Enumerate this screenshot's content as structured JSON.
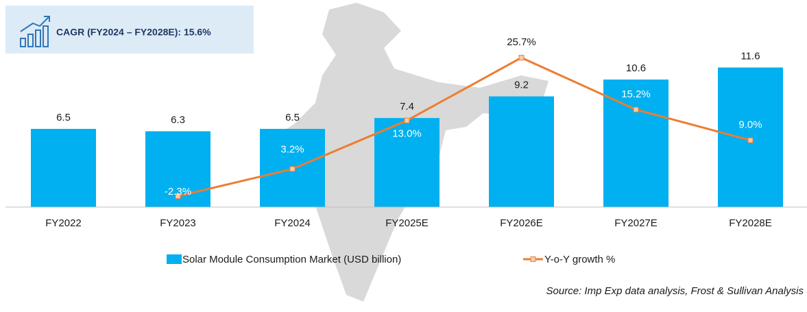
{
  "chart_data": {
    "type": "bar_line",
    "annotation": "CAGR  (FY2024 – FY2028E): 15.6%",
    "source": "Source: Imp Exp data analysis, Frost & Sullivan Analysis",
    "categories": [
      "FY2022",
      "FY2023",
      "FY2024",
      "FY2025E",
      "FY2026E",
      "FY2027E",
      "FY2028E"
    ],
    "series": [
      {
        "name": "Solar Module Consumption Market (USD billion)",
        "type": "bar",
        "color": "#00b0f0",
        "values": [
          6.5,
          6.3,
          6.5,
          7.4,
          9.2,
          10.6,
          11.6
        ]
      },
      {
        "name": "Y-o-Y growth %",
        "type": "line",
        "axis": "y2",
        "color": "#ed7d31",
        "values": [
          null,
          -2.3,
          3.2,
          13.0,
          25.7,
          15.2,
          9.0
        ],
        "value_labels": [
          null,
          "-2.3%",
          "3.2%",
          "13.0%",
          "25.7%",
          "15.2%",
          "9.0%"
        ]
      }
    ],
    "ylim": [
      0,
      15.5
    ],
    "y2lim": [
      -4.5,
      33.2
    ]
  }
}
